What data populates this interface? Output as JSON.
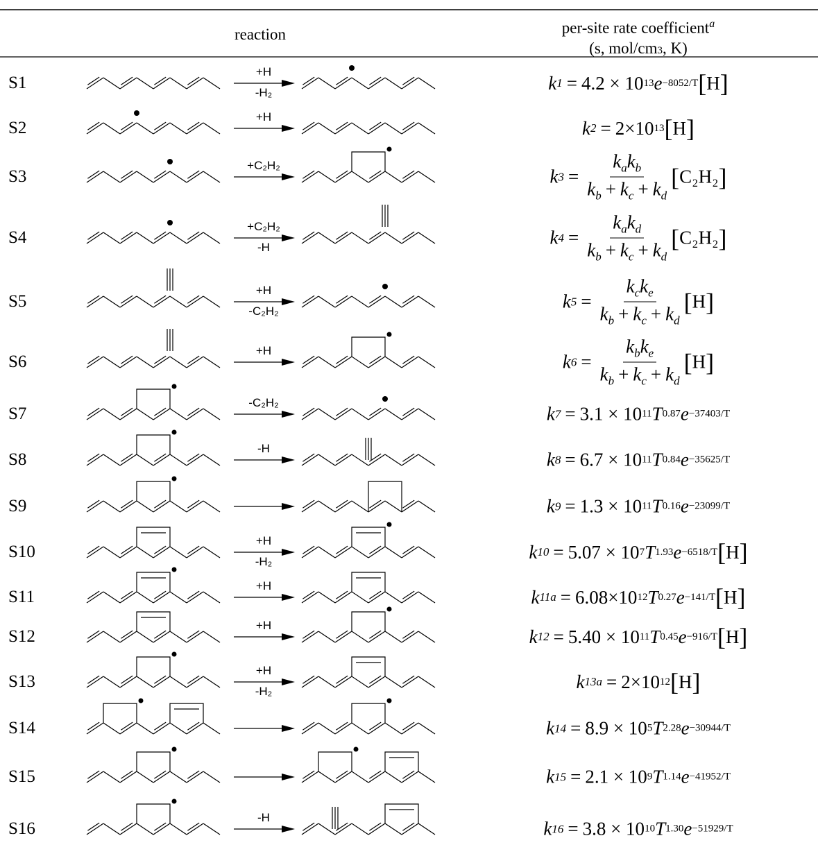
{
  "header": {
    "reaction": "reaction",
    "rate_title": "per-site rate coefficient",
    "footnote_mark": "a",
    "units_pre": "(s, mol/cm",
    "units_exp": "3",
    "units_post": ", K)"
  },
  "notation": {
    "k": "k",
    "eq": "=",
    "e": "e",
    "T": "T",
    "open": "[",
    "close": "]",
    "plus": "+"
  },
  "rows": [
    {
      "id": "S1",
      "arrow_top": "+H",
      "arrow_bottom": "-H₂",
      "rate": {
        "sub": "1",
        "coef": "4.2 × 10",
        "coef_exp": "13",
        "e_exp": "−8052/T",
        "species": "H"
      }
    },
    {
      "id": "S2",
      "arrow_top": "+H",
      "rate": {
        "sub": "2",
        "coef": "2×10",
        "coef_exp": "13",
        "species": "H"
      }
    },
    {
      "id": "S3",
      "arrow_top": "+C₂H₂",
      "rate": {
        "sub": "3",
        "num": [
          "a",
          "b"
        ],
        "den": [
          "b",
          "c",
          "d"
        ],
        "species": "C₂H₂"
      }
    },
    {
      "id": "S4",
      "arrow_top": "+C₂H₂",
      "arrow_bottom": "-H",
      "rate": {
        "sub": "4",
        "num": [
          "a",
          "d"
        ],
        "den": [
          "b",
          "c",
          "d"
        ],
        "species": "C₂H₂"
      }
    },
    {
      "id": "S5",
      "arrow_top": "+H",
      "arrow_bottom": "-C₂H₂",
      "rate": {
        "sub": "5",
        "num": [
          "c",
          "e"
        ],
        "den": [
          "b",
          "c",
          "d"
        ],
        "species": "H"
      }
    },
    {
      "id": "S6",
      "arrow_top": "+H",
      "rate": {
        "sub": "6",
        "num": [
          "b",
          "e"
        ],
        "den": [
          "b",
          "c",
          "d"
        ],
        "species": "H"
      }
    },
    {
      "id": "S7",
      "arrow_top": "-C₂H₂",
      "rate": {
        "sub": "7",
        "coef": "3.1 × 10",
        "coef_exp": "11",
        "t_exp": "0.87",
        "e_exp": "−37403/T"
      }
    },
    {
      "id": "S8",
      "arrow_top": "-H",
      "rate": {
        "sub": "8",
        "coef": "6.7 × 10",
        "coef_exp": "11",
        "t_exp": "0.84",
        "e_exp": "−35625/T"
      }
    },
    {
      "id": "S9",
      "rate": {
        "sub": "9",
        "coef": "1.3 × 10",
        "coef_exp": "11",
        "t_exp": "0.16",
        "e_exp": "−23099/T"
      }
    },
    {
      "id": "S10",
      "arrow_top": "+H",
      "arrow_bottom": "-H₂",
      "rate": {
        "sub": "10",
        "coef": "5.07 × 10",
        "coef_exp": "7",
        "t_exp": "1.93",
        "e_exp": "−6518/T",
        "species": "H"
      }
    },
    {
      "id": "S11",
      "arrow_top": "+H",
      "rate": {
        "sub": "11a",
        "coef": "6.08×10",
        "coef_exp": "12",
        "t_exp": "0.27",
        "e_exp": "−141/T",
        "species": "H"
      }
    },
    {
      "id": "S12",
      "arrow_top": "+H",
      "rate": {
        "sub": "12",
        "coef": "5.40 × 10",
        "coef_exp": "11",
        "t_exp": "0.45",
        "e_exp": "−916/T",
        "species": "H"
      }
    },
    {
      "id": "S13",
      "arrow_top": "+H",
      "arrow_bottom": "-H₂",
      "rate": {
        "sub": "13a",
        "coef": "2×10",
        "coef_exp": "12",
        "species": "H"
      }
    },
    {
      "id": "S14",
      "rate": {
        "sub": "14",
        "coef": "8.9 × 10",
        "coef_exp": "5",
        "t_exp": "2.28",
        "e_exp": "−30944/T"
      }
    },
    {
      "id": "S15",
      "rate": {
        "sub": "15",
        "coef": "2.1 × 10",
        "coef_exp": "9",
        "t_exp": "1.14",
        "e_exp": "−41952/T"
      }
    },
    {
      "id": "S16",
      "arrow_top": "-H",
      "rate": {
        "sub": "16",
        "coef": "3.8 × 10",
        "coef_exp": "10",
        "t_exp": "1.30",
        "e_exp": "−51929/T"
      }
    }
  ]
}
